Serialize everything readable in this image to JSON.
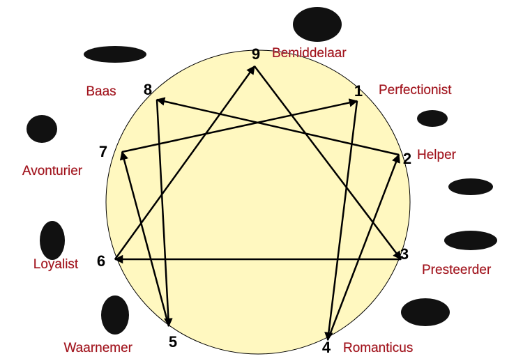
{
  "nodes": [
    {
      "number": "9",
      "label": "Bemiddelaar"
    },
    {
      "number": "1",
      "label": "Perfectionist"
    },
    {
      "number": "2",
      "label": "Helper"
    },
    {
      "number": "3",
      "label": "Presteerder"
    },
    {
      "number": "4",
      "label": "Romanticus"
    },
    {
      "number": "5",
      "label": "Waarnemer"
    },
    {
      "number": "6",
      "label": "Loyalist"
    },
    {
      "number": "7",
      "label": "Avonturier"
    },
    {
      "number": "8",
      "label": "Baas"
    }
  ]
}
